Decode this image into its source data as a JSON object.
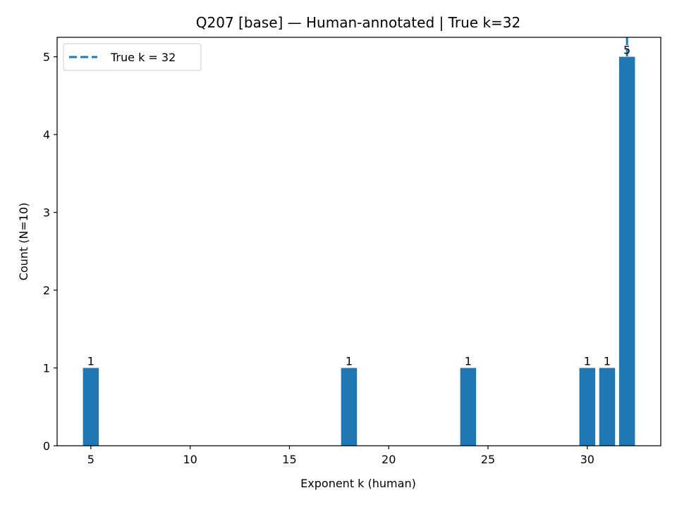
{
  "chart_data": {
    "type": "bar",
    "title": "Q207 [base] — Human-annotated | True k=32",
    "xlabel": "Exponent k (human)",
    "ylabel": "Count (N=10)",
    "x": [
      5,
      18,
      24,
      30,
      31,
      32
    ],
    "values": [
      1,
      1,
      1,
      1,
      1,
      5
    ],
    "data_labels": [
      "1",
      "1",
      "1",
      "1",
      "1",
      "5"
    ],
    "xlim": [
      3.3,
      33.7
    ],
    "ylim": [
      0,
      5.25
    ],
    "xticks": [
      5,
      10,
      15,
      20,
      25,
      30
    ],
    "xtick_labels": [
      "5",
      "10",
      "15",
      "20",
      "25",
      "30"
    ],
    "yticks": [
      0,
      1,
      2,
      3,
      4,
      5
    ],
    "ytick_labels": [
      "0",
      "1",
      "2",
      "3",
      "4",
      "5"
    ],
    "bar_color": "#1f77b4",
    "reference_line": {
      "x": 32,
      "style": "dashed",
      "color": "#1f77b4",
      "label": "True k = 32"
    },
    "legend": {
      "position": "top-left",
      "entries": [
        "True k = 32"
      ]
    },
    "grid": false
  }
}
